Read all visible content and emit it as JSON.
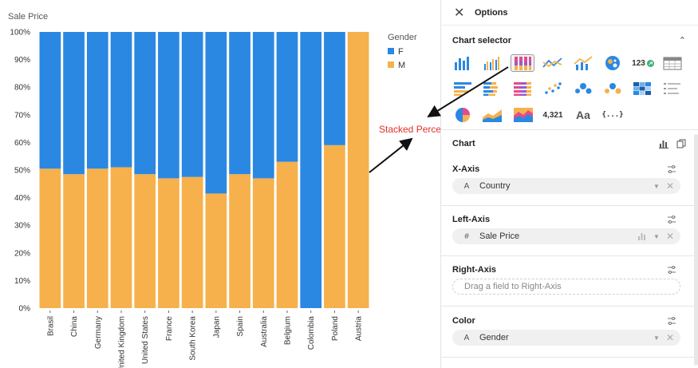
{
  "chart": {
    "title": "Sale Price",
    "legend": {
      "title": "Gender",
      "items": [
        {
          "label": "F",
          "color": "#2a88e3"
        },
        {
          "label": "M",
          "color": "#f6b14c"
        }
      ]
    },
    "annotation": "Stacked Percentage"
  },
  "chart_data": {
    "type": "bar",
    "stacked": "percent",
    "title": "Sale Price",
    "categories": [
      "Brasil",
      "China",
      "Germany",
      "United Kingdom",
      "United States",
      "France",
      "South Korea",
      "Japan",
      "Spain",
      "Australia",
      "Belgium",
      "Colombia",
      "Poland",
      "Austria"
    ],
    "series": [
      {
        "name": "M",
        "color": "#f6b14c",
        "values": [
          50.5,
          48.5,
          50.5,
          51,
          48.5,
          47,
          47.5,
          41.5,
          48.5,
          47,
          53,
          0,
          59,
          100
        ]
      },
      {
        "name": "F",
        "color": "#2a88e3",
        "values": [
          49.5,
          51.5,
          49.5,
          49,
          51.5,
          53,
          52.5,
          58.5,
          51.5,
          53,
          47,
          100,
          41,
          0
        ]
      }
    ],
    "ylim": [
      0,
      100
    ],
    "yticks": [
      "0%",
      "10%",
      "20%",
      "30%",
      "40%",
      "50%",
      "60%",
      "70%",
      "80%",
      "90%",
      "100%"
    ],
    "legend_position": "top-right",
    "grid": false
  },
  "panel": {
    "title": "Options",
    "chart_selector_label": "Chart selector",
    "chart_types": [
      {
        "name": "bar",
        "icon": "bar-chart-icon"
      },
      {
        "name": "grouped-bar",
        "icon": "grouped-bar-chart-icon"
      },
      {
        "name": "stacked-percentage",
        "icon": "stacked-percentage-chart-icon",
        "selected": true
      },
      {
        "name": "line",
        "icon": "line-chart-icon"
      },
      {
        "name": "combo",
        "icon": "combo-chart-icon"
      },
      {
        "name": "pie-map",
        "icon": "map-chart-icon"
      },
      {
        "name": "number-trend",
        "icon": "number-trend-icon",
        "text": "123"
      },
      {
        "name": "table",
        "icon": "table-icon"
      },
      {
        "name": "horizontal-bar",
        "icon": "horizontal-bar-icon"
      },
      {
        "name": "horizontal-stacked",
        "icon": "horizontal-stacked-bar-icon"
      },
      {
        "name": "horizontal-percentage",
        "icon": "horizontal-percentage-bar-icon"
      },
      {
        "name": "scatter",
        "icon": "scatter-icon"
      },
      {
        "name": "bubble",
        "icon": "bubble-icon"
      },
      {
        "name": "bubble-color",
        "icon": "bubble-color-icon"
      },
      {
        "name": "heatmap",
        "icon": "heatmap-icon"
      },
      {
        "name": "list",
        "icon": "list-icon"
      },
      {
        "name": "pie",
        "icon": "pie-chart-icon"
      },
      {
        "name": "area",
        "icon": "area-chart-icon"
      },
      {
        "name": "stacked-area",
        "icon": "stacked-area-chart-icon"
      },
      {
        "name": "number",
        "icon": "number-icon",
        "text": "4,321"
      },
      {
        "name": "text",
        "icon": "text-icon",
        "text": "Aa"
      },
      {
        "name": "json",
        "icon": "json-icon",
        "text": "{...}"
      }
    ],
    "chart_section_label": "Chart",
    "x_axis": {
      "label": "X-Axis",
      "type_glyph": "A",
      "field": "Country"
    },
    "left_axis": {
      "label": "Left-Axis",
      "type_glyph": "#",
      "field": "Sale Price"
    },
    "right_axis": {
      "label": "Right-Axis",
      "placeholder": "Drag a field to Right-Axis"
    },
    "color": {
      "label": "Color",
      "type_glyph": "A",
      "field": "Gender"
    }
  }
}
